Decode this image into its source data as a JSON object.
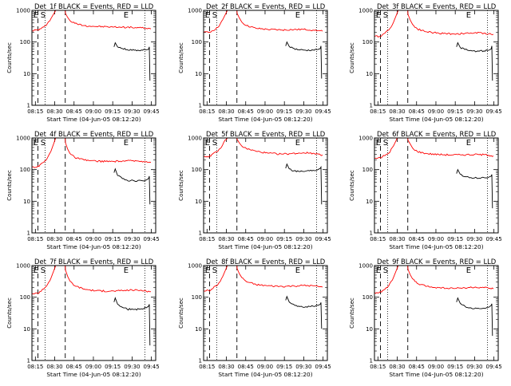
{
  "chart_data": [
    {
      "type": "line",
      "title": "Det_1f BLACK = Events, RED = LLD",
      "xlabel": "Start Time (04-Jun-05 08:12:20)",
      "ylabel": "Counts/sec",
      "xtick_labels": [
        "08:15",
        "08:30",
        "08:45",
        "09:00",
        "09:15",
        "09:30",
        "09:45"
      ],
      "ytick_labels": [
        "1",
        "10",
        "100",
        "1000"
      ],
      "yscale": "log",
      "ylim": [
        1,
        1000
      ],
      "markers": [
        "E",
        "S",
        "E"
      ],
      "series": [
        {
          "color": "#ff0000",
          "x": [
            0,
            3,
            3.3,
            6,
            8,
            10,
            13,
            14,
            14.1,
            15,
            16,
            18,
            22,
            27,
            33,
            37,
            42,
            46,
            48,
            50
          ],
          "y": [
            230,
            240,
            260,
            330,
            550,
            1100,
            1100,
            1100,
            800,
            600,
            470,
            390,
            330,
            310,
            300,
            295,
            290,
            280,
            270,
            260
          ]
        },
        {
          "color": "#000000",
          "x": [
            34.5,
            35,
            36,
            38,
            40,
            43,
            46,
            48,
            49,
            49.3,
            49.6
          ],
          "y": [
            70,
            95,
            70,
            62,
            58,
            55,
            56,
            57,
            59,
            70,
            6
          ]
        }
      ]
    },
    {
      "type": "line",
      "title": "Det_2f BLACK = Events, RED = LLD",
      "xlabel": "Start Time (04-Jun-05 08:12:20)",
      "ylabel": "Counts/sec",
      "xtick_labels": [
        "08:15",
        "08:30",
        "08:45",
        "09:00",
        "09:15",
        "09:30",
        "09:45"
      ],
      "ytick_labels": [
        "1",
        "10",
        "100",
        "1000"
      ],
      "yscale": "log",
      "ylim": [
        1,
        1000
      ],
      "markers": [
        "E",
        "S",
        "E"
      ],
      "series": [
        {
          "color": "#ff0000",
          "x": [
            0,
            3,
            3.3,
            6,
            8,
            10,
            13,
            14,
            14.1,
            15,
            16,
            18,
            22,
            27,
            33,
            37,
            42,
            46,
            48,
            50
          ],
          "y": [
            200,
            205,
            220,
            290,
            500,
            1100,
            1100,
            1100,
            800,
            580,
            430,
            330,
            270,
            250,
            240,
            245,
            250,
            240,
            230,
            220
          ]
        },
        {
          "color": "#000000",
          "x": [
            34.5,
            35,
            36,
            38,
            40,
            43,
            46,
            48,
            49,
            49.3,
            49.6
          ],
          "y": [
            75,
            100,
            72,
            62,
            57,
            55,
            56,
            58,
            62,
            75,
            7
          ]
        }
      ]
    },
    {
      "type": "line",
      "title": "Det_3f BLACK = Events, RED = LLD",
      "xlabel": "Start Time (04-Jun-05 08:12:20)",
      "ylabel": "Counts/sec",
      "xtick_labels": [
        "08:15",
        "08:30",
        "08:45",
        "09:00",
        "09:15",
        "09:30",
        "09:45"
      ],
      "ytick_labels": [
        "1",
        "10",
        "100",
        "1000"
      ],
      "yscale": "log",
      "ylim": [
        1,
        1000
      ],
      "markers": [
        "E",
        "S",
        "E"
      ],
      "series": [
        {
          "color": "#ff0000",
          "x": [
            0,
            3,
            3.3,
            6,
            8,
            10,
            13,
            14,
            14.1,
            15,
            16,
            18,
            22,
            27,
            33,
            37,
            42,
            46,
            48,
            50
          ],
          "y": [
            150,
            155,
            170,
            240,
            420,
            1100,
            1100,
            1100,
            750,
            500,
            360,
            260,
            210,
            190,
            180,
            185,
            195,
            190,
            180,
            175
          ]
        },
        {
          "color": "#000000",
          "x": [
            34.5,
            35,
            36,
            38,
            40,
            43,
            46,
            48,
            49,
            49.3,
            49.6
          ],
          "y": [
            70,
            95,
            68,
            58,
            53,
            51,
            52,
            55,
            60,
            75,
            6
          ]
        }
      ]
    },
    {
      "type": "line",
      "title": "Det_4f BLACK = Events, RED = LLD",
      "xlabel": "Start Time (04-Jun-05 08:12:20)",
      "ylabel": "Counts/sec",
      "xtick_labels": [
        "08:15",
        "08:30",
        "08:45",
        "09:00",
        "09:15",
        "09:30",
        "09:45"
      ],
      "ytick_labels": [
        "1",
        "10",
        "100",
        "1000"
      ],
      "yscale": "log",
      "ylim": [
        1,
        1000
      ],
      "markers": [
        "E",
        "S",
        "E"
      ],
      "series": [
        {
          "color": "#ff0000",
          "x": [
            0,
            3,
            3.3,
            6,
            8,
            10,
            13,
            14,
            14.1,
            15,
            16,
            18,
            22,
            27,
            33,
            37,
            42,
            46,
            48,
            50
          ],
          "y": [
            120,
            125,
            140,
            200,
            380,
            1100,
            1100,
            1100,
            700,
            450,
            320,
            240,
            200,
            185,
            180,
            185,
            190,
            185,
            180,
            170
          ]
        },
        {
          "color": "#000000",
          "x": [
            34.5,
            35,
            36,
            38,
            40,
            43,
            46,
            48,
            49,
            49.3,
            49.6
          ],
          "y": [
            80,
            105,
            65,
            52,
            46,
            44,
            45,
            47,
            52,
            62,
            8
          ]
        }
      ]
    },
    {
      "type": "line",
      "title": "Det_5f BLACK = Events, RED = LLD",
      "xlabel": "Start Time (04-Jun-05 08:12:20)",
      "ylabel": "Counts/sec",
      "xtick_labels": [
        "08:15",
        "08:30",
        "08:45",
        "09:00",
        "09:15",
        "09:30",
        "09:45"
      ],
      "ytick_labels": [
        "1",
        "10",
        "100",
        "1000"
      ],
      "yscale": "log",
      "ylim": [
        1,
        1000
      ],
      "markers": [
        "E",
        "S",
        "E"
      ],
      "series": [
        {
          "color": "#ff0000",
          "x": [
            0,
            3,
            3.3,
            6,
            8,
            10,
            13,
            14,
            14.1,
            15,
            16,
            18,
            22,
            27,
            33,
            37,
            42,
            46,
            48,
            50
          ],
          "y": [
            260,
            265,
            290,
            380,
            600,
            1100,
            1100,
            1100,
            900,
            700,
            560,
            460,
            380,
            330,
            310,
            320,
            340,
            330,
            310,
            290
          ]
        },
        {
          "color": "#000000",
          "x": [
            34.5,
            35,
            36,
            38,
            40,
            43,
            46,
            48,
            49,
            49.3,
            49.6
          ],
          "y": [
            110,
            150,
            105,
            92,
            88,
            90,
            95,
            100,
            110,
            120,
            8
          ]
        }
      ]
    },
    {
      "type": "line",
      "title": "Det_6f BLACK = Events, RED = LLD",
      "xlabel": "Start Time (04-Jun-05 08:12:20)",
      "ylabel": "Counts/sec",
      "xtick_labels": [
        "08:15",
        "08:30",
        "08:45",
        "09:00",
        "09:15",
        "09:30",
        "09:45"
      ],
      "ytick_labels": [
        "1",
        "10",
        "100",
        "1000"
      ],
      "yscale": "log",
      "ylim": [
        1,
        1000
      ],
      "markers": [
        "E",
        "S",
        "E"
      ],
      "series": [
        {
          "color": "#ff0000",
          "x": [
            0,
            3,
            3.3,
            6,
            8,
            10,
            13,
            14,
            14.1,
            15,
            16,
            18,
            22,
            27,
            33,
            37,
            42,
            46,
            48,
            50
          ],
          "y": [
            230,
            235,
            255,
            330,
            560,
            1100,
            1100,
            1100,
            850,
            650,
            480,
            370,
            320,
            300,
            290,
            295,
            300,
            295,
            285,
            270
          ]
        },
        {
          "color": "#000000",
          "x": [
            34.5,
            35,
            36,
            38,
            40,
            43,
            46,
            48,
            49,
            49.3,
            49.6
          ],
          "y": [
            75,
            100,
            72,
            60,
            55,
            54,
            56,
            58,
            62,
            70,
            6
          ]
        }
      ]
    },
    {
      "type": "line",
      "title": "Det_7f BLACK = Events, RED = LLD",
      "xlabel": "Start Time (04-Jun-05 08:12:20)",
      "ylabel": "Counts/sec",
      "xtick_labels": [
        "08:15",
        "08:30",
        "08:45",
        "09:00",
        "09:15",
        "09:30",
        "09:45"
      ],
      "ytick_labels": [
        "1",
        "10",
        "100",
        "1000"
      ],
      "yscale": "log",
      "ylim": [
        1,
        1000
      ],
      "markers": [
        "E",
        "S",
        "E"
      ],
      "series": [
        {
          "color": "#ff0000",
          "x": [
            0,
            3,
            3.3,
            6,
            8,
            10,
            13,
            14,
            14.1,
            15,
            16,
            18,
            22,
            27,
            33,
            37,
            42,
            46,
            48,
            50
          ],
          "y": [
            130,
            135,
            150,
            220,
            400,
            1100,
            1100,
            1100,
            720,
            460,
            320,
            230,
            180,
            160,
            155,
            160,
            170,
            165,
            155,
            150
          ]
        },
        {
          "color": "#000000",
          "x": [
            34.5,
            35,
            36,
            38,
            40,
            43,
            46,
            48,
            49,
            49.3,
            49.6
          ],
          "y": [
            70,
            95,
            60,
            48,
            42,
            41,
            43,
            46,
            52,
            60,
            3
          ]
        }
      ]
    },
    {
      "type": "line",
      "title": "Det_8f BLACK = Events, RED = LLD",
      "xlabel": "Start Time (04-Jun-05 08:12:20)",
      "ylabel": "Counts/sec",
      "xtick_labels": [
        "08:15",
        "08:30",
        "08:45",
        "09:00",
        "09:15",
        "09:30",
        "09:45"
      ],
      "ytick_labels": [
        "1",
        "10",
        "100",
        "1000"
      ],
      "yscale": "log",
      "ylim": [
        1,
        1000
      ],
      "markers": [
        "E",
        "S",
        "E"
      ],
      "series": [
        {
          "color": "#ff0000",
          "x": [
            0,
            3,
            3.3,
            6,
            8,
            10,
            13,
            14,
            14.1,
            15,
            16,
            18,
            22,
            27,
            33,
            37,
            42,
            46,
            48,
            50
          ],
          "y": [
            160,
            165,
            180,
            250,
            440,
            1100,
            1100,
            1100,
            800,
            560,
            420,
            310,
            250,
            230,
            220,
            225,
            235,
            230,
            220,
            210
          ]
        },
        {
          "color": "#000000",
          "x": [
            34.5,
            35,
            36,
            38,
            40,
            43,
            46,
            48,
            49,
            49.3,
            49.6
          ],
          "y": [
            80,
            105,
            70,
            58,
            52,
            50,
            52,
            55,
            60,
            68,
            10
          ]
        }
      ]
    },
    {
      "type": "line",
      "title": "Det_9f BLACK = Events, RED = LLD",
      "xlabel": "Start Time (04-Jun-05 08:12:20)",
      "ylabel": "Counts/sec",
      "xtick_labels": [
        "08:15",
        "08:30",
        "08:45",
        "09:00",
        "09:15",
        "09:30",
        "09:45"
      ],
      "ytick_labels": [
        "1",
        "10",
        "100",
        "1000"
      ],
      "yscale": "log",
      "ylim": [
        1,
        1000
      ],
      "markers": [
        "E",
        "S",
        "E"
      ],
      "series": [
        {
          "color": "#ff0000",
          "x": [
            0,
            3,
            3.3,
            6,
            8,
            10,
            13,
            14,
            14.1,
            15,
            16,
            18,
            22,
            27,
            33,
            37,
            42,
            46,
            48,
            50
          ],
          "y": [
            140,
            145,
            160,
            230,
            420,
            1100,
            1100,
            1100,
            760,
            520,
            380,
            270,
            220,
            200,
            190,
            195,
            205,
            200,
            190,
            185
          ]
        },
        {
          "color": "#000000",
          "x": [
            34.5,
            35,
            36,
            38,
            40,
            43,
            46,
            48,
            49,
            49.3,
            49.6
          ],
          "y": [
            70,
            95,
            65,
            52,
            46,
            44,
            45,
            48,
            55,
            62,
            6
          ]
        }
      ]
    }
  ]
}
